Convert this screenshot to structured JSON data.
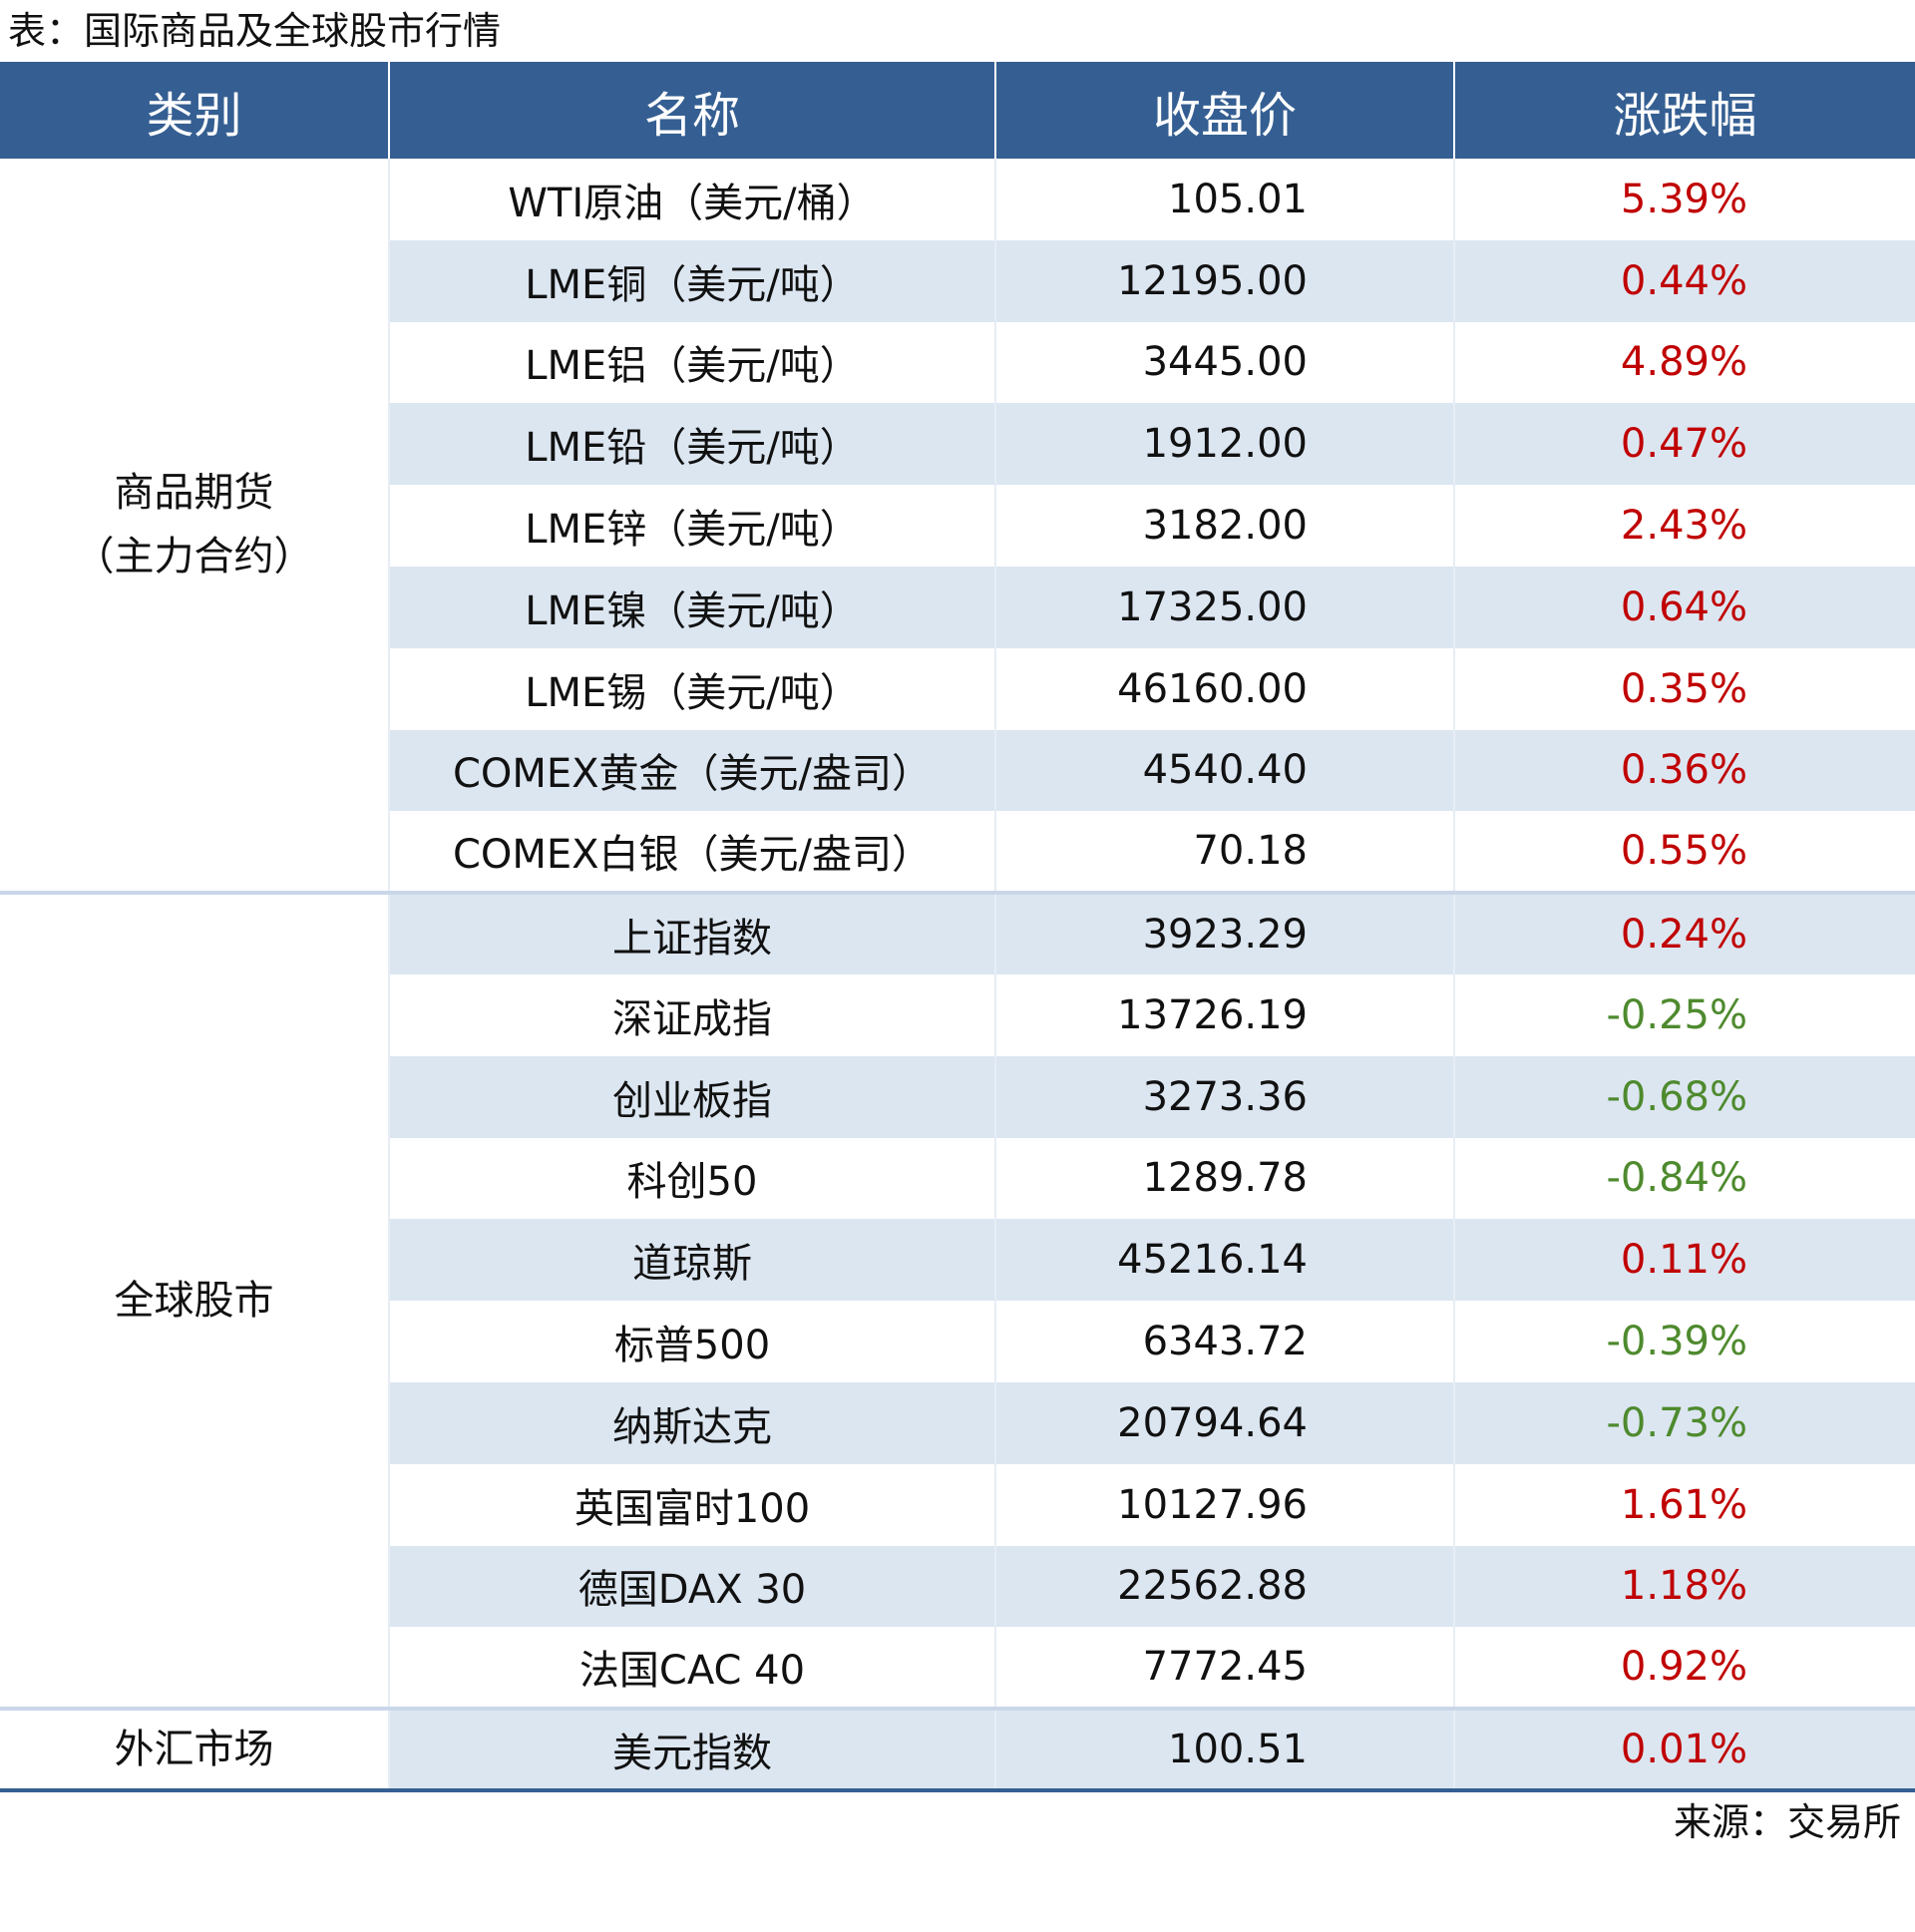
{
  "title": "表：国际商品及全球股市行情",
  "table": {
    "header": [
      "类别",
      "名称",
      "收盘价",
      "涨跌幅"
    ],
    "groups": [
      {
        "category": [
          "商品期货",
          "（主力合约）"
        ],
        "rows": [
          [
            "WTI原油（美元/桶）",
            "105.01",
            "5.39%"
          ],
          [
            "LME铜（美元/吨）",
            "12195.00",
            "0.44%"
          ],
          [
            "LME铝（美元/吨）",
            "3445.00",
            "4.89%"
          ],
          [
            "LME铅（美元/吨）",
            "1912.00",
            "0.47%"
          ],
          [
            "LME锌（美元/吨）",
            "3182.00",
            "2.43%"
          ],
          [
            "LME镍（美元/吨）",
            "17325.00",
            "0.64%"
          ],
          [
            "LME锡（美元/吨）",
            "46160.00",
            "0.35%"
          ],
          [
            "COMEX黄金（美元/盎司）",
            "4540.40",
            "0.36%"
          ],
          [
            "COMEX白银（美元/盎司）",
            "70.18",
            "0.55%"
          ]
        ]
      },
      {
        "category": [
          "全球股市"
        ],
        "rows": [
          [
            "上证指数",
            "3923.29",
            "0.24%"
          ],
          [
            "深证成指",
            "13726.19",
            "-0.25%"
          ],
          [
            "创业板指",
            "3273.36",
            "-0.68%"
          ],
          [
            "科创50",
            "1289.78",
            "-0.84%"
          ],
          [
            "道琼斯",
            "45216.14",
            "0.11%"
          ],
          [
            "标普500",
            "6343.72",
            "-0.39%"
          ],
          [
            "纳斯达克",
            "20794.64",
            "-0.73%"
          ],
          [
            "英国富时100",
            "10127.96",
            "1.61%"
          ],
          [
            "德国DAX 30",
            "22562.88",
            "1.18%"
          ],
          [
            "法国CAC 40",
            "7772.45",
            "0.92%"
          ]
        ]
      },
      {
        "category": [
          "外汇市场"
        ],
        "rows": [
          [
            "美元指数",
            "100.51",
            "0.01%"
          ]
        ]
      }
    ]
  },
  "source": "来源：交易所"
}
